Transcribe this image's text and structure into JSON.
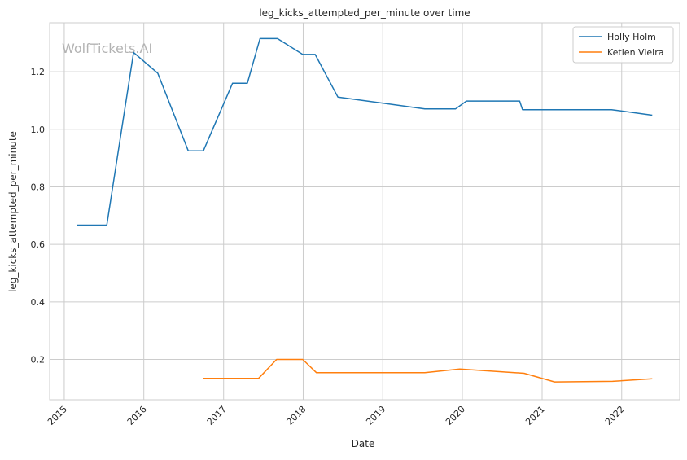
{
  "watermark": "WolfTickets.AI",
  "chart_data": {
    "type": "line",
    "title": "leg_kicks_attempted_per_minute over time",
    "xlabel": "Date",
    "ylabel": "leg_kicks_attempted_per_minute",
    "xlim": [
      "2014-10-26",
      "2022-09-24"
    ],
    "ylim": [
      0.06,
      1.37
    ],
    "x_ticks": [
      "2015",
      "2016",
      "2017",
      "2018",
      "2019",
      "2020",
      "2021",
      "2022"
    ],
    "y_ticks": [
      0.2,
      0.4,
      0.6,
      0.8,
      1.0,
      1.2
    ],
    "y_tick_labels": [
      "0.2",
      "0.4",
      "0.6",
      "0.8",
      "1.0",
      "1.2"
    ],
    "grid": true,
    "legend_position": "top-right",
    "series": [
      {
        "name": "Holly Holm",
        "color": "#1f77b4",
        "points": [
          {
            "x": "2015-02-28",
            "y": 0.667
          },
          {
            "x": "2015-07-15",
            "y": 0.667
          },
          {
            "x": "2015-11-15",
            "y": 1.267
          },
          {
            "x": "2016-03-05",
            "y": 1.195
          },
          {
            "x": "2016-07-23",
            "y": 0.925
          },
          {
            "x": "2016-09-30",
            "y": 0.925
          },
          {
            "x": "2017-02-11",
            "y": 1.16
          },
          {
            "x": "2017-04-20",
            "y": 1.16
          },
          {
            "x": "2017-06-17",
            "y": 1.315
          },
          {
            "x": "2017-09-05",
            "y": 1.315
          },
          {
            "x": "2017-12-30",
            "y": 1.26
          },
          {
            "x": "2018-02-25",
            "y": 1.26
          },
          {
            "x": "2018-06-09",
            "y": 1.112
          },
          {
            "x": "2019-07-13",
            "y": 1.071
          },
          {
            "x": "2019-12-01",
            "y": 1.071
          },
          {
            "x": "2020-01-20",
            "y": 1.098
          },
          {
            "x": "2020-09-20",
            "y": 1.098
          },
          {
            "x": "2020-10-03",
            "y": 1.068
          },
          {
            "x": "2021-11-15",
            "y": 1.068
          },
          {
            "x": "2022-05-21",
            "y": 1.049
          }
        ]
      },
      {
        "name": "Ketlen Vieira",
        "color": "#ff7f0e",
        "points": [
          {
            "x": "2016-09-30",
            "y": 0.134
          },
          {
            "x": "2017-06-10",
            "y": 0.134
          },
          {
            "x": "2017-09-01",
            "y": 0.2
          },
          {
            "x": "2017-12-30",
            "y": 0.2
          },
          {
            "x": "2018-03-03",
            "y": 0.154
          },
          {
            "x": "2019-07-13",
            "y": 0.154
          },
          {
            "x": "2019-12-20",
            "y": 0.167
          },
          {
            "x": "2020-10-10",
            "y": 0.152
          },
          {
            "x": "2021-02-27",
            "y": 0.122
          },
          {
            "x": "2021-11-20",
            "y": 0.124
          },
          {
            "x": "2022-05-21",
            "y": 0.133
          }
        ]
      }
    ]
  }
}
